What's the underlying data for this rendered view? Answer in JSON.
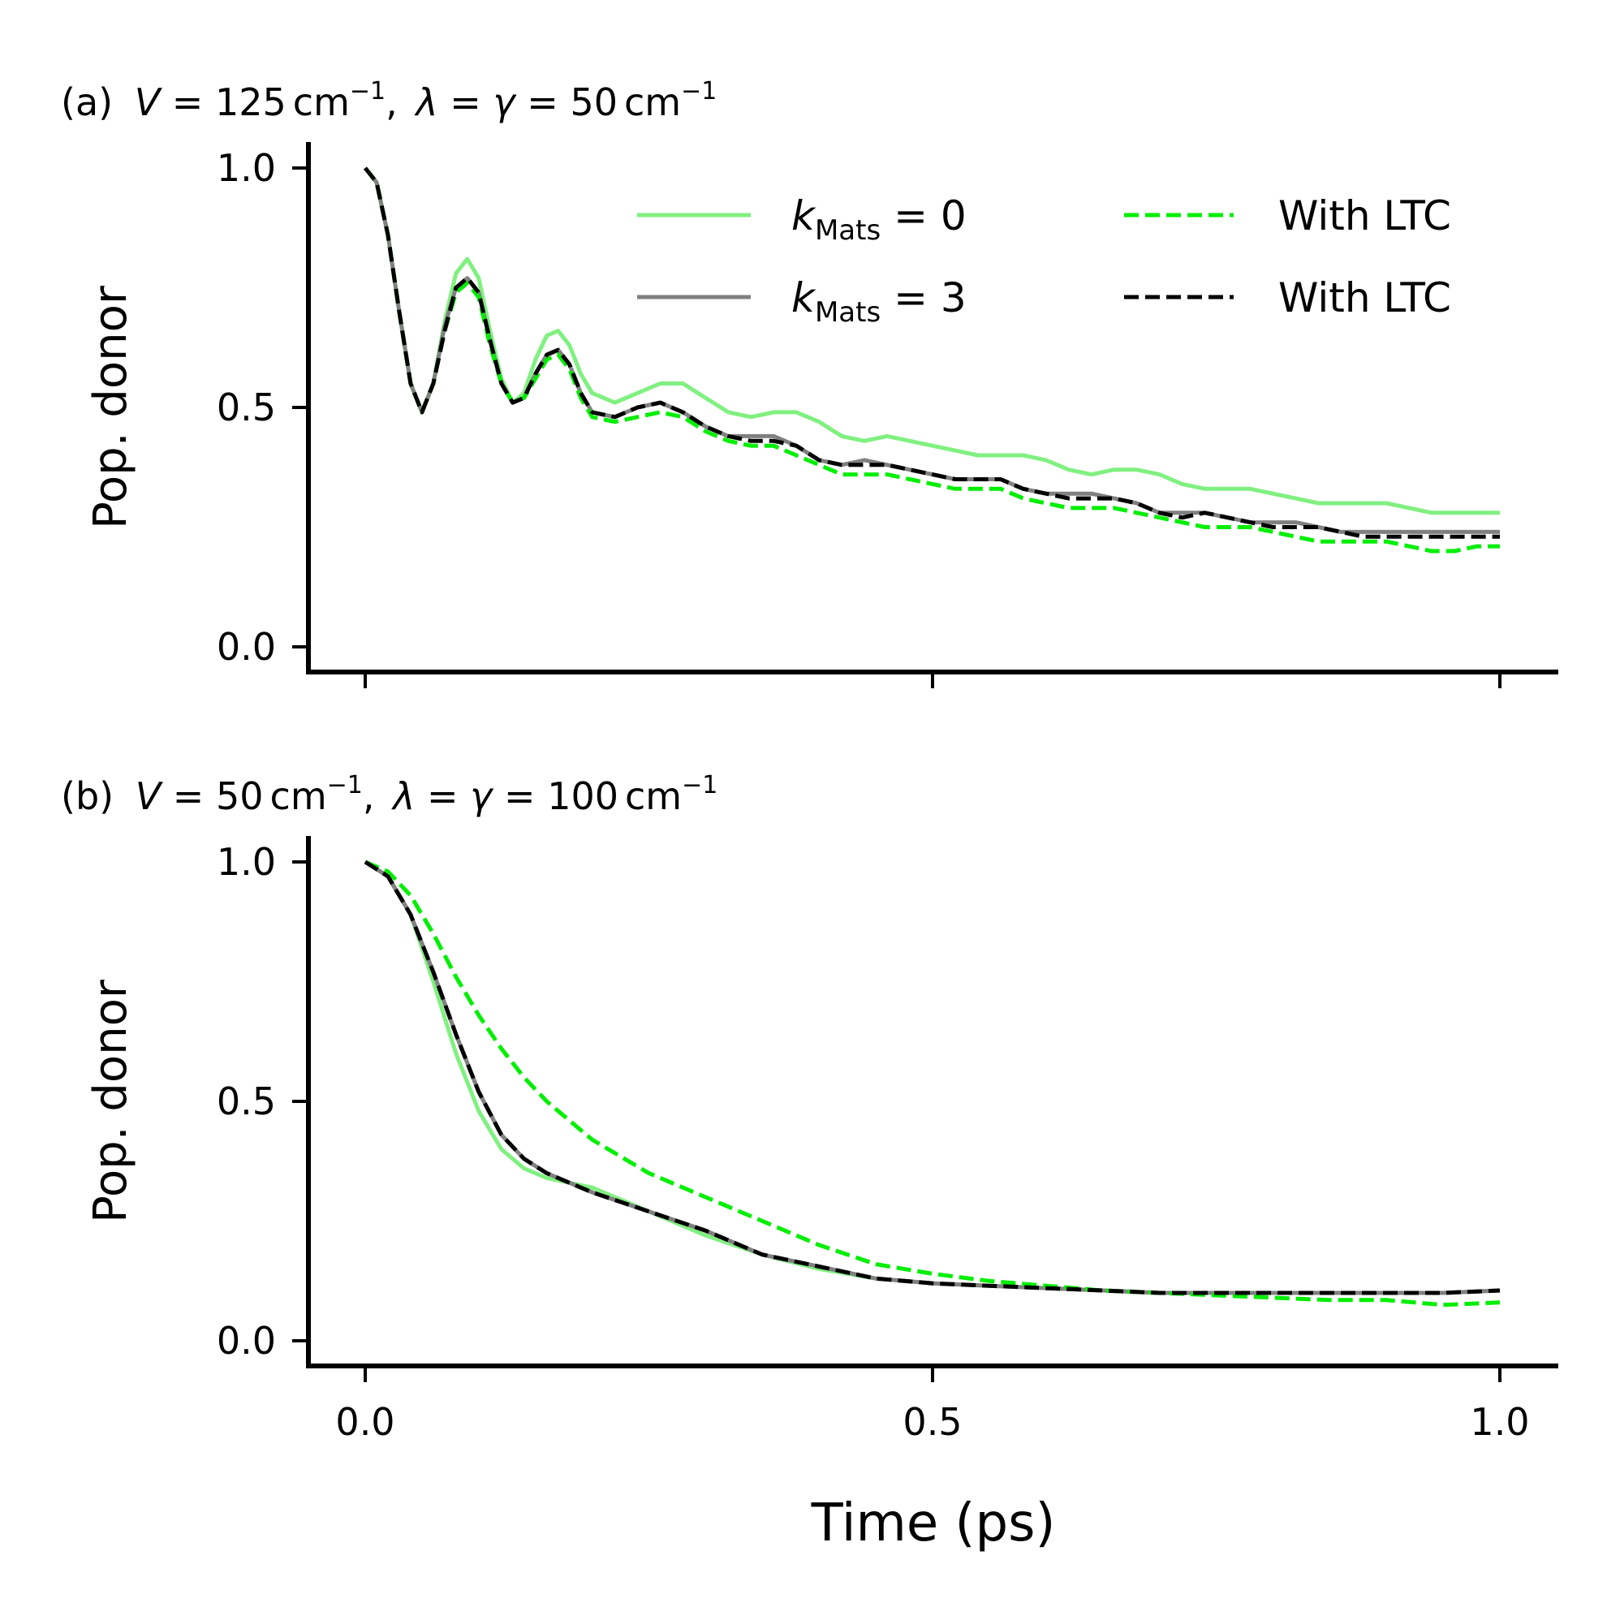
{
  "figure": {
    "xlabel": "Time (ps)",
    "colors": {
      "k0": "#80f080",
      "k3": "#808080",
      "ltc0": "#00ee00",
      "ltc3": "#000000",
      "axis": "#000000"
    }
  },
  "chart_data": [
    {
      "type": "line",
      "title": {
        "prefix": "(a)",
        "math": "V = 125 cm⁻¹,  λ = γ = 50 cm⁻¹",
        "V_value": "125",
        "lambda_gamma_value": "50",
        "unit": "cm",
        "unit_exp": "−1"
      },
      "xlabel": "",
      "ylabel": "Pop. donor",
      "xlim": [
        -0.05,
        1.06
      ],
      "ylim": [
        -0.05,
        1.05
      ],
      "xticks": [
        0.0,
        0.5,
        1.0
      ],
      "yticks": [
        0.0,
        0.5,
        1.0
      ],
      "ytick_labels": [
        "0.0",
        "0.5",
        "1.0"
      ],
      "xtick_labels_visible": false,
      "legend": {
        "position": "upper-right",
        "columns": 2,
        "entries": [
          {
            "series": "k0",
            "label_symbol": "k",
            "label_sub": "Mats",
            "label_rest": " = 0",
            "style": "solid"
          },
          {
            "series": "k3",
            "label_symbol": "k",
            "label_sub": "Mats",
            "label_rest": " = 3",
            "style": "solid"
          },
          {
            "series": "ltc0",
            "label": "With LTC",
            "style": "dashed"
          },
          {
            "series": "ltc3",
            "label": "With LTC",
            "style": "dashed"
          }
        ]
      },
      "series": [
        {
          "name": "k0",
          "style": "solid",
          "x": [
            0.0,
            0.01,
            0.02,
            0.03,
            0.04,
            0.05,
            0.06,
            0.07,
            0.08,
            0.09,
            0.1,
            0.11,
            0.12,
            0.13,
            0.14,
            0.15,
            0.16,
            0.17,
            0.18,
            0.19,
            0.2,
            0.22,
            0.24,
            0.26,
            0.28,
            0.3,
            0.32,
            0.34,
            0.36,
            0.38,
            0.4,
            0.42,
            0.44,
            0.46,
            0.48,
            0.5,
            0.52,
            0.54,
            0.56,
            0.58,
            0.6,
            0.62,
            0.64,
            0.66,
            0.68,
            0.7,
            0.72,
            0.74,
            0.76,
            0.78,
            0.8,
            0.82,
            0.84,
            0.86,
            0.88,
            0.9,
            0.92,
            0.94,
            0.96,
            0.98,
            1.0
          ],
          "values": [
            1.0,
            0.97,
            0.86,
            0.7,
            0.55,
            0.49,
            0.55,
            0.68,
            0.78,
            0.81,
            0.77,
            0.66,
            0.56,
            0.51,
            0.53,
            0.6,
            0.65,
            0.66,
            0.63,
            0.57,
            0.53,
            0.51,
            0.53,
            0.55,
            0.55,
            0.52,
            0.49,
            0.48,
            0.49,
            0.49,
            0.47,
            0.44,
            0.43,
            0.44,
            0.43,
            0.42,
            0.41,
            0.4,
            0.4,
            0.4,
            0.39,
            0.37,
            0.36,
            0.37,
            0.37,
            0.36,
            0.34,
            0.33,
            0.33,
            0.33,
            0.32,
            0.31,
            0.3,
            0.3,
            0.3,
            0.3,
            0.29,
            0.28,
            0.28,
            0.28,
            0.28
          ]
        },
        {
          "name": "k3",
          "style": "solid",
          "x": [
            0.0,
            0.01,
            0.02,
            0.03,
            0.04,
            0.05,
            0.06,
            0.07,
            0.08,
            0.09,
            0.1,
            0.11,
            0.12,
            0.13,
            0.14,
            0.15,
            0.16,
            0.17,
            0.18,
            0.19,
            0.2,
            0.22,
            0.24,
            0.26,
            0.28,
            0.3,
            0.32,
            0.34,
            0.36,
            0.38,
            0.4,
            0.42,
            0.44,
            0.46,
            0.48,
            0.5,
            0.52,
            0.54,
            0.56,
            0.58,
            0.6,
            0.62,
            0.64,
            0.66,
            0.68,
            0.7,
            0.72,
            0.74,
            0.76,
            0.78,
            0.8,
            0.82,
            0.84,
            0.86,
            0.88,
            0.9,
            0.92,
            0.94,
            0.96,
            0.98,
            1.0
          ],
          "values": [
            1.0,
            0.97,
            0.86,
            0.7,
            0.55,
            0.49,
            0.55,
            0.67,
            0.75,
            0.77,
            0.74,
            0.64,
            0.55,
            0.51,
            0.52,
            0.57,
            0.61,
            0.62,
            0.59,
            0.53,
            0.49,
            0.48,
            0.5,
            0.51,
            0.49,
            0.46,
            0.44,
            0.44,
            0.44,
            0.42,
            0.39,
            0.38,
            0.39,
            0.38,
            0.37,
            0.36,
            0.35,
            0.35,
            0.35,
            0.33,
            0.32,
            0.32,
            0.32,
            0.31,
            0.3,
            0.28,
            0.28,
            0.28,
            0.27,
            0.26,
            0.26,
            0.26,
            0.25,
            0.24,
            0.24,
            0.24,
            0.24,
            0.24,
            0.24,
            0.24,
            0.24
          ]
        },
        {
          "name": "ltc0",
          "style": "dashed",
          "x": [
            0.0,
            0.01,
            0.02,
            0.03,
            0.04,
            0.05,
            0.06,
            0.07,
            0.08,
            0.09,
            0.1,
            0.11,
            0.12,
            0.13,
            0.14,
            0.15,
            0.16,
            0.17,
            0.18,
            0.19,
            0.2,
            0.22,
            0.24,
            0.26,
            0.28,
            0.3,
            0.32,
            0.34,
            0.36,
            0.38,
            0.4,
            0.42,
            0.44,
            0.46,
            0.48,
            0.5,
            0.52,
            0.54,
            0.56,
            0.58,
            0.6,
            0.62,
            0.64,
            0.66,
            0.68,
            0.7,
            0.72,
            0.74,
            0.76,
            0.78,
            0.8,
            0.82,
            0.84,
            0.86,
            0.88,
            0.9,
            0.92,
            0.94,
            0.96,
            0.98,
            1.0
          ],
          "values": [
            1.0,
            0.97,
            0.86,
            0.7,
            0.55,
            0.49,
            0.55,
            0.66,
            0.74,
            0.76,
            0.73,
            0.63,
            0.55,
            0.51,
            0.52,
            0.56,
            0.6,
            0.61,
            0.58,
            0.52,
            0.48,
            0.47,
            0.48,
            0.49,
            0.48,
            0.45,
            0.43,
            0.42,
            0.42,
            0.4,
            0.38,
            0.36,
            0.36,
            0.36,
            0.35,
            0.34,
            0.33,
            0.33,
            0.33,
            0.31,
            0.3,
            0.29,
            0.29,
            0.29,
            0.28,
            0.27,
            0.26,
            0.25,
            0.25,
            0.25,
            0.24,
            0.23,
            0.22,
            0.22,
            0.22,
            0.22,
            0.21,
            0.2,
            0.2,
            0.21,
            0.21
          ]
        },
        {
          "name": "ltc3",
          "style": "dashed",
          "x": [
            0.0,
            0.01,
            0.02,
            0.03,
            0.04,
            0.05,
            0.06,
            0.07,
            0.08,
            0.09,
            0.1,
            0.11,
            0.12,
            0.13,
            0.14,
            0.15,
            0.16,
            0.17,
            0.18,
            0.19,
            0.2,
            0.22,
            0.24,
            0.26,
            0.28,
            0.3,
            0.32,
            0.34,
            0.36,
            0.38,
            0.4,
            0.42,
            0.44,
            0.46,
            0.48,
            0.5,
            0.52,
            0.54,
            0.56,
            0.58,
            0.6,
            0.62,
            0.64,
            0.66,
            0.68,
            0.7,
            0.72,
            0.74,
            0.76,
            0.78,
            0.8,
            0.82,
            0.84,
            0.86,
            0.88,
            0.9,
            0.92,
            0.94,
            0.96,
            0.98,
            1.0
          ],
          "values": [
            1.0,
            0.97,
            0.86,
            0.7,
            0.55,
            0.49,
            0.55,
            0.66,
            0.75,
            0.77,
            0.74,
            0.64,
            0.55,
            0.51,
            0.52,
            0.57,
            0.61,
            0.62,
            0.59,
            0.53,
            0.49,
            0.48,
            0.5,
            0.51,
            0.49,
            0.46,
            0.44,
            0.43,
            0.43,
            0.42,
            0.39,
            0.38,
            0.38,
            0.38,
            0.37,
            0.36,
            0.35,
            0.35,
            0.35,
            0.33,
            0.32,
            0.31,
            0.31,
            0.31,
            0.3,
            0.28,
            0.27,
            0.28,
            0.27,
            0.26,
            0.25,
            0.25,
            0.25,
            0.24,
            0.23,
            0.23,
            0.23,
            0.23,
            0.23,
            0.23,
            0.23
          ]
        }
      ]
    },
    {
      "type": "line",
      "title": {
        "prefix": "(b)",
        "math": "V = 50 cm⁻¹,  λ = γ = 100 cm⁻¹",
        "V_value": "50",
        "lambda_gamma_value": "100",
        "unit": "cm",
        "unit_exp": "−1"
      },
      "xlabel": "Time (ps)",
      "ylabel": "Pop. donor",
      "xlim": [
        -0.05,
        1.06
      ],
      "ylim": [
        -0.05,
        1.05
      ],
      "xticks": [
        0.0,
        0.5,
        1.0
      ],
      "xtick_labels": [
        "0.0",
        "0.5",
        "1.0"
      ],
      "yticks": [
        0.0,
        0.5,
        1.0
      ],
      "ytick_labels": [
        "0.0",
        "0.5",
        "1.0"
      ],
      "xtick_labels_visible": true,
      "series": [
        {
          "name": "k0",
          "style": "solid",
          "x": [
            0.0,
            0.02,
            0.04,
            0.06,
            0.08,
            0.1,
            0.12,
            0.14,
            0.16,
            0.18,
            0.2,
            0.25,
            0.3,
            0.35,
            0.4,
            0.45,
            0.5,
            0.55,
            0.6,
            0.65,
            0.7,
            0.75,
            0.8,
            0.85,
            0.9,
            0.95,
            1.0
          ],
          "values": [
            1.0,
            0.97,
            0.89,
            0.75,
            0.6,
            0.48,
            0.4,
            0.36,
            0.34,
            0.33,
            0.32,
            0.27,
            0.22,
            0.18,
            0.15,
            0.13,
            0.12,
            0.115,
            0.11,
            0.105,
            0.1,
            0.1,
            0.1,
            0.1,
            0.1,
            0.1,
            0.105
          ]
        },
        {
          "name": "k3",
          "style": "solid",
          "x": [
            0.0,
            0.02,
            0.04,
            0.06,
            0.08,
            0.1,
            0.12,
            0.14,
            0.16,
            0.18,
            0.2,
            0.25,
            0.3,
            0.35,
            0.4,
            0.45,
            0.5,
            0.55,
            0.6,
            0.65,
            0.7,
            0.75,
            0.8,
            0.85,
            0.9,
            0.95,
            1.0
          ],
          "values": [
            1.0,
            0.97,
            0.89,
            0.77,
            0.64,
            0.52,
            0.43,
            0.38,
            0.35,
            0.33,
            0.31,
            0.27,
            0.23,
            0.18,
            0.155,
            0.13,
            0.12,
            0.115,
            0.11,
            0.105,
            0.1,
            0.1,
            0.1,
            0.1,
            0.1,
            0.1,
            0.105
          ]
        },
        {
          "name": "ltc0",
          "style": "dashed",
          "x": [
            0.0,
            0.02,
            0.04,
            0.06,
            0.08,
            0.1,
            0.12,
            0.14,
            0.16,
            0.18,
            0.2,
            0.25,
            0.3,
            0.35,
            0.4,
            0.45,
            0.5,
            0.55,
            0.6,
            0.65,
            0.7,
            0.75,
            0.8,
            0.85,
            0.9,
            0.95,
            1.0
          ],
          "values": [
            1.0,
            0.98,
            0.93,
            0.85,
            0.76,
            0.68,
            0.61,
            0.55,
            0.5,
            0.46,
            0.42,
            0.35,
            0.3,
            0.25,
            0.2,
            0.16,
            0.14,
            0.125,
            0.115,
            0.105,
            0.1,
            0.095,
            0.09,
            0.085,
            0.085,
            0.075,
            0.08
          ]
        },
        {
          "name": "ltc3",
          "style": "dashed",
          "x": [
            0.0,
            0.02,
            0.04,
            0.06,
            0.08,
            0.1,
            0.12,
            0.14,
            0.16,
            0.18,
            0.2,
            0.25,
            0.3,
            0.35,
            0.4,
            0.45,
            0.5,
            0.55,
            0.6,
            0.65,
            0.7,
            0.75,
            0.8,
            0.85,
            0.9,
            0.95,
            1.0
          ],
          "values": [
            1.0,
            0.97,
            0.89,
            0.77,
            0.64,
            0.52,
            0.43,
            0.38,
            0.35,
            0.33,
            0.31,
            0.27,
            0.23,
            0.18,
            0.155,
            0.13,
            0.12,
            0.115,
            0.11,
            0.105,
            0.1,
            0.1,
            0.1,
            0.1,
            0.1,
            0.1,
            0.105
          ]
        }
      ]
    }
  ]
}
